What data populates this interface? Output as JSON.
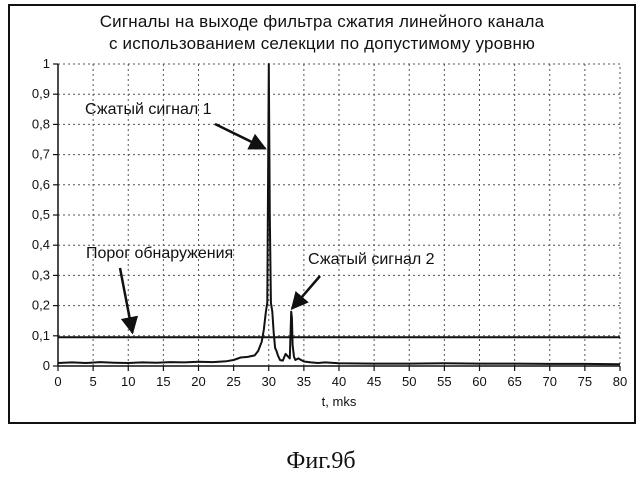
{
  "chart_data": {
    "type": "line",
    "title_line1": "Сигналы на выходе фильтра сжатия линейного канала",
    "title_line2": "с использованием селекции по допустимому уровню",
    "xlabel": "t, mks",
    "ylabel": "",
    "xlim": [
      0,
      80
    ],
    "ylim": [
      0,
      1
    ],
    "x_ticks": [
      0,
      5,
      10,
      15,
      20,
      25,
      30,
      35,
      40,
      45,
      50,
      55,
      60,
      65,
      70,
      75,
      80
    ],
    "y_ticks": [
      0,
      0.1,
      0.2,
      0.3,
      0.4,
      0.5,
      0.6,
      0.7,
      0.8,
      0.9,
      1
    ],
    "y_tick_labels": [
      "0",
      "0,1",
      "0,2",
      "0,3",
      "0,4",
      "0,5",
      "0,6",
      "0,7",
      "0,8",
      "0,9",
      "1"
    ],
    "grid": true,
    "threshold": {
      "y": 0.095
    },
    "signal": {
      "x": [
        0,
        2,
        4,
        6,
        8,
        10,
        12,
        14,
        16,
        18,
        20,
        22,
        24,
        25,
        26,
        27,
        28,
        28.5,
        29,
        29.3,
        29.6,
        29.8,
        30,
        30.15,
        30.3,
        30.5,
        30.7,
        30.9,
        31.1,
        31.3,
        31.6,
        32,
        32.4,
        32.8,
        33,
        33.2,
        33.3,
        33.4,
        33.6,
        33.8,
        34.2,
        34.6,
        35,
        36,
        37,
        38,
        40,
        45,
        50,
        55,
        60,
        65,
        70,
        75,
        80
      ],
      "y": [
        0.01,
        0.012,
        0.01,
        0.013,
        0.011,
        0.01,
        0.012,
        0.011,
        0.013,
        0.012,
        0.014,
        0.013,
        0.016,
        0.02,
        0.028,
        0.03,
        0.035,
        0.05,
        0.08,
        0.12,
        0.18,
        0.21,
        1.0,
        0.5,
        0.21,
        0.18,
        0.11,
        0.06,
        0.05,
        0.035,
        0.02,
        0.018,
        0.04,
        0.03,
        0.025,
        0.18,
        0.16,
        0.07,
        0.03,
        0.02,
        0.025,
        0.02,
        0.015,
        0.012,
        0.01,
        0.012,
        0.009,
        0.008,
        0.008,
        0.009,
        0.008,
        0.008,
        0.007,
        0.007,
        0.006
      ]
    },
    "annotations": [
      {
        "id": "signal1",
        "text": "Сжатый сигнал 1",
        "target_x": 29.5,
        "target_y": 0.72
      },
      {
        "id": "signal2",
        "text": "Сжатый сигнал 2",
        "target_x": 33.3,
        "target_y": 0.19
      },
      {
        "id": "threshold",
        "text": "Порог обнаружения",
        "target_x": 10.6,
        "target_y": 0.11
      }
    ]
  },
  "caption": "Фиг.9б"
}
